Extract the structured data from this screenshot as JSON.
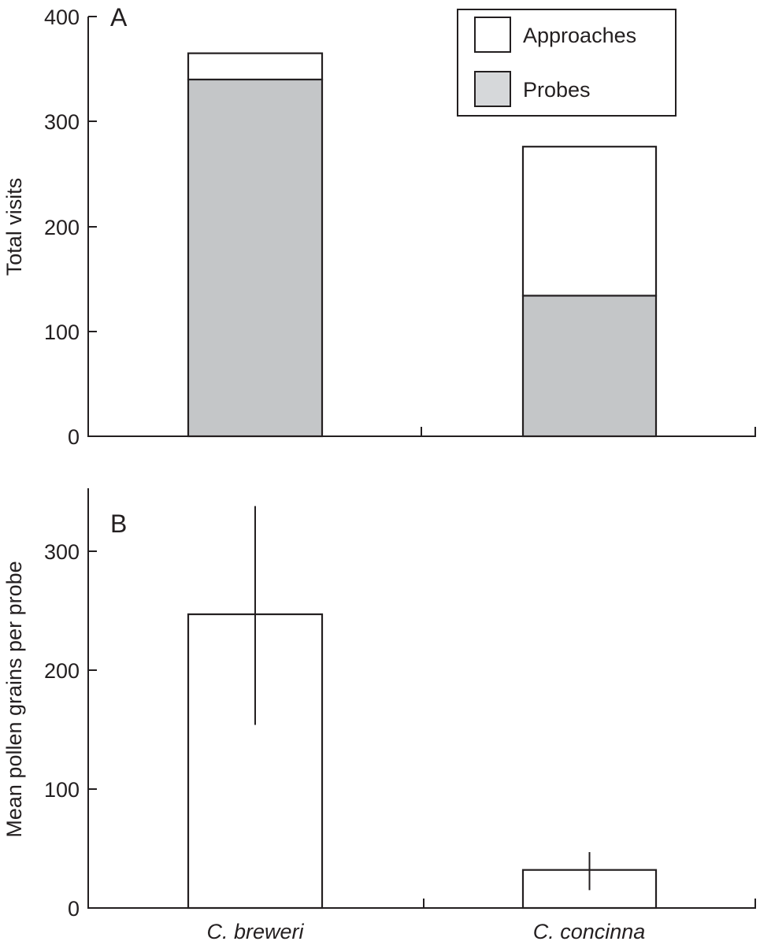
{
  "figure": {
    "panel_a": {
      "letter": "A",
      "ylabel": "Total visits",
      "yticks": [
        "0",
        "100",
        "200",
        "300",
        "400"
      ],
      "legend": {
        "approaches": "Approaches",
        "probes": "Probes"
      }
    },
    "panel_b": {
      "letter": "B",
      "ylabel": "Mean pollen grains per probe",
      "yticks": [
        "0",
        "100",
        "200",
        "300"
      ]
    },
    "categories": [
      "C. breweri",
      "C. concinna"
    ],
    "colors": {
      "probes_fill": "#c4c6c8",
      "approaches_fill": "#ffffff",
      "stroke": "#231f20"
    }
  },
  "chart_data": [
    {
      "panel": "A",
      "type": "bar",
      "stacked": true,
      "title": "",
      "xlabel": "",
      "ylabel": "Total visits",
      "ylim": [
        0,
        400
      ],
      "yticks": [
        0,
        100,
        200,
        300,
        400
      ],
      "categories": [
        "C. breweri",
        "C. concinna"
      ],
      "series": [
        {
          "name": "Probes",
          "color": "#c4c6c8",
          "values": [
            340,
            134
          ]
        },
        {
          "name": "Approaches",
          "color": "#ffffff",
          "values": [
            25,
            142
          ]
        }
      ],
      "totals": [
        365,
        276
      ],
      "legend_position": "upper right",
      "grid": false
    },
    {
      "panel": "B",
      "type": "bar",
      "title": "",
      "xlabel": "",
      "ylabel": "Mean pollen grains per probe",
      "ylim": [
        0,
        350
      ],
      "yticks": [
        0,
        100,
        200,
        300
      ],
      "categories": [
        "C. breweri",
        "C. concinna"
      ],
      "values": [
        247,
        32
      ],
      "error_bars": [
        {
          "low": 154,
          "high": 338
        },
        {
          "low": 15,
          "high": 47
        }
      ],
      "bar_color": "#ffffff",
      "grid": false
    }
  ]
}
